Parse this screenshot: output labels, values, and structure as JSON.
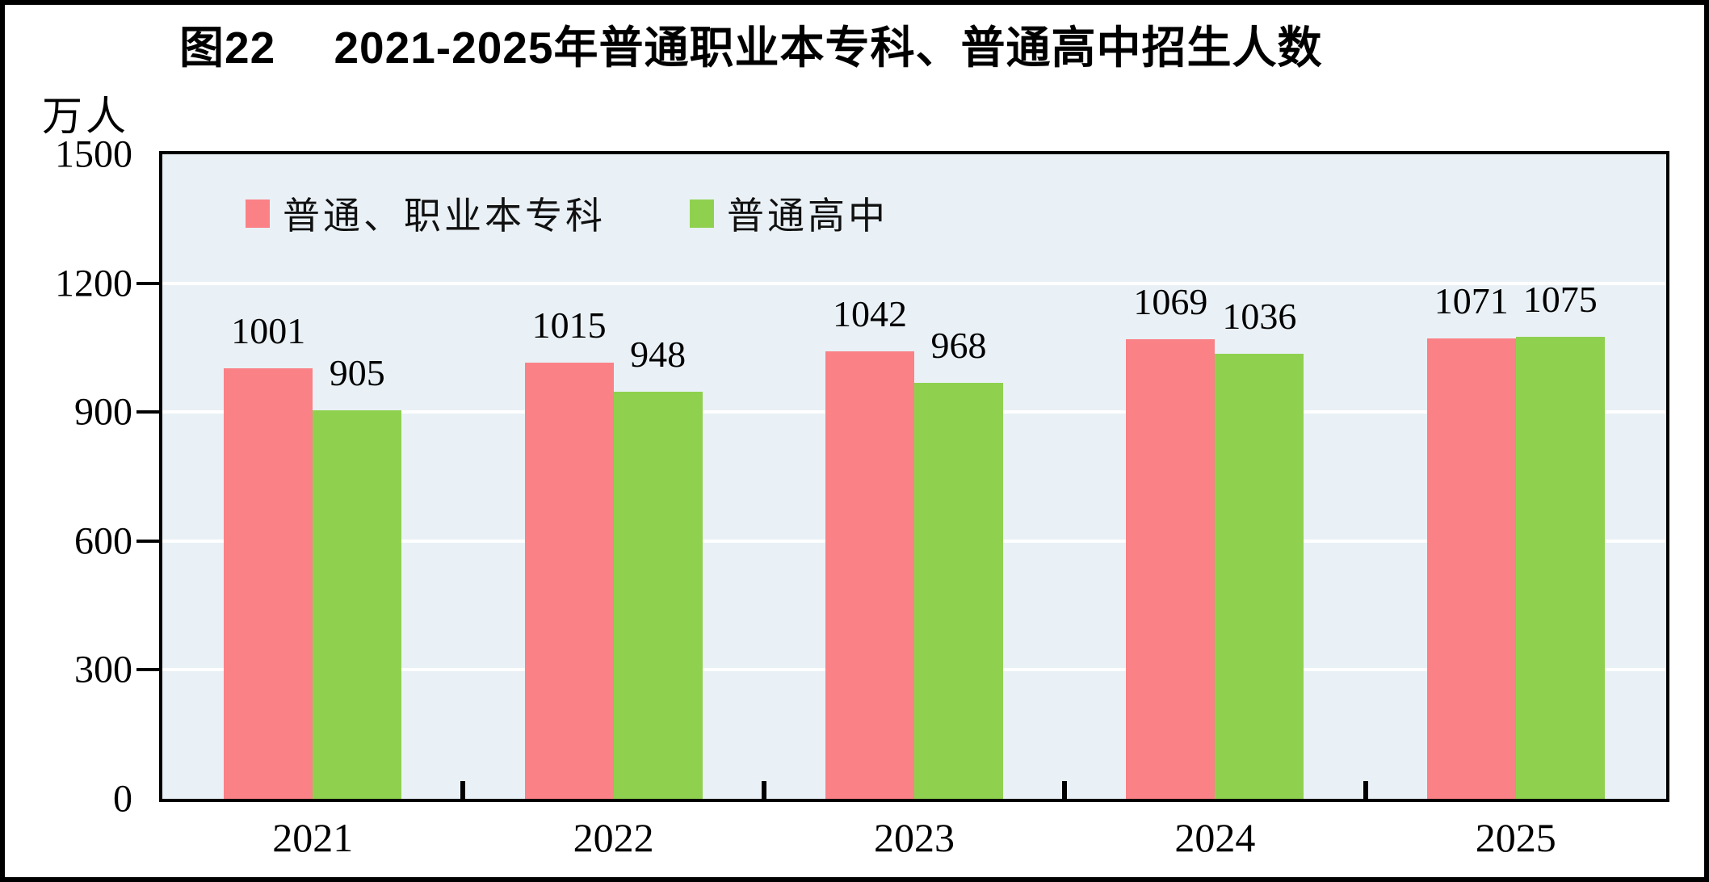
{
  "title": "图22　 2021-2025年普通职业本专科、普通高中招生人数",
  "unit_label": "万人",
  "colors": {
    "series1": "#FA8186",
    "series2": "#8FD14F",
    "plot_background": "#E9F1F6",
    "gridline": "#FFFFFF",
    "frame": "#000000"
  },
  "chart_data": {
    "type": "bar",
    "title": "图22 2021-2025年普通职业本专科、普通高中招生人数",
    "ylabel": "万人",
    "categories": [
      "2021",
      "2022",
      "2023",
      "2024",
      "2025"
    ],
    "series": [
      {
        "name": "普通、职业本专科",
        "color": "#FA8186",
        "values": [
          1001,
          1015,
          1042,
          1069,
          1071
        ]
      },
      {
        "name": "普通高中",
        "color": "#8FD14F",
        "values": [
          905,
          948,
          968,
          1036,
          1075
        ]
      }
    ],
    "ylim": [
      0,
      1500
    ],
    "yticks": [
      0,
      300,
      600,
      900,
      1200,
      1500
    ],
    "grid": true,
    "legend_position": "top-left-inside",
    "data_labels": true
  }
}
